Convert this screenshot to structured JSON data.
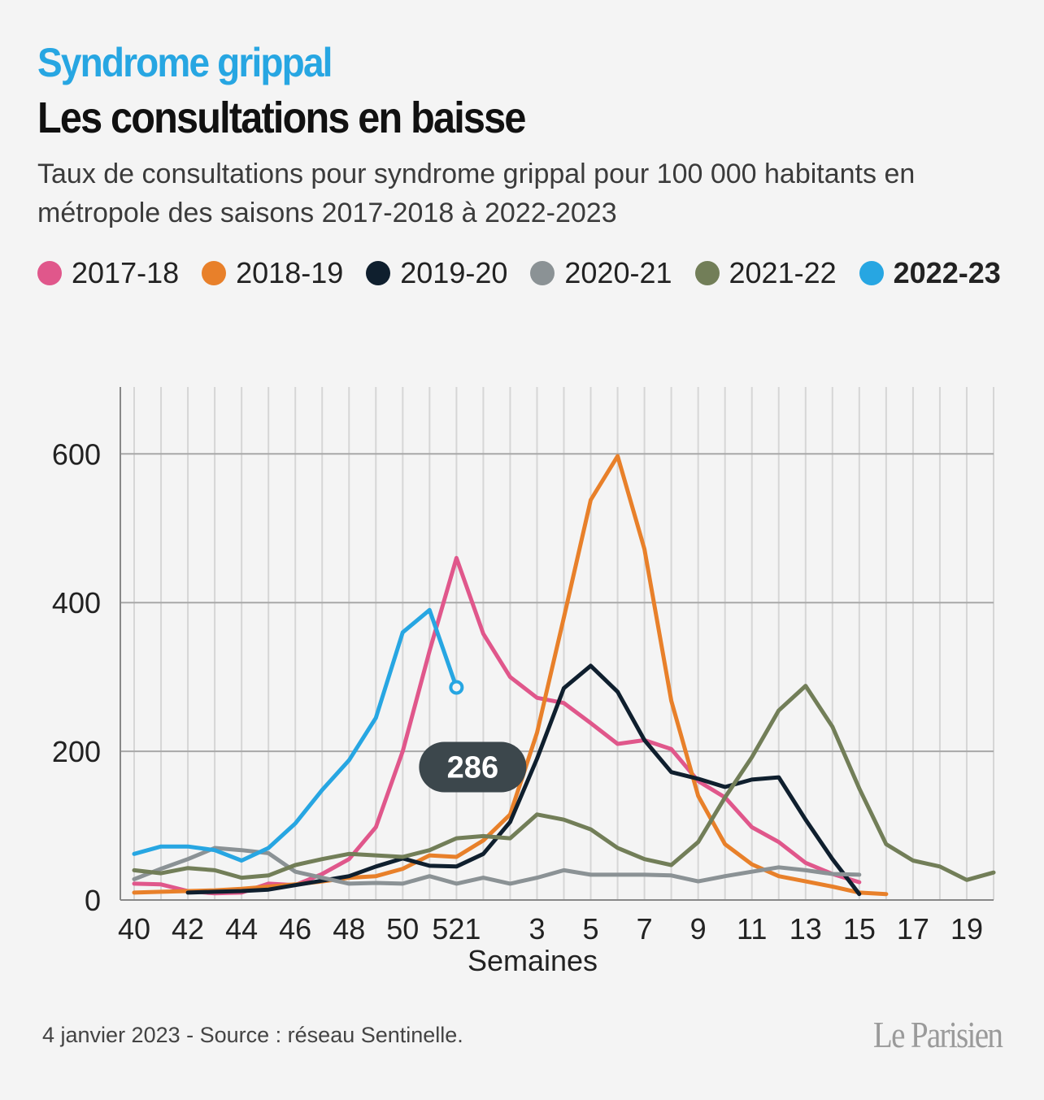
{
  "header": {
    "kicker": "Syndrome grippal",
    "title": "Les consultations en baisse",
    "subtitle": "Taux de consultations pour syndrome grippal pour 100 000 habitants en métropole des saisons 2017-2018 à 2022-2023"
  },
  "legend": [
    {
      "label": "2017-18",
      "color": "#e0578b"
    },
    {
      "label": "2018-19",
      "color": "#e8802a"
    },
    {
      "label": "2019-20",
      "color": "#0f1f2e"
    },
    {
      "label": "2020-21",
      "color": "#8b9295"
    },
    {
      "label": "2021-22",
      "color": "#727e58"
    },
    {
      "label": "2022-23",
      "color": "#27a6e2"
    }
  ],
  "chart_data": {
    "type": "line",
    "xlabel": "Semaines",
    "ylabel": "",
    "ylim": [
      0,
      690
    ],
    "yticks": [
      0,
      200,
      400,
      600
    ],
    "x_positions": [
      "40",
      "41",
      "42",
      "43",
      "44",
      "45",
      "46",
      "47",
      "48",
      "49",
      "50",
      "51",
      "52",
      "1",
      "2",
      "3",
      "4",
      "5",
      "6",
      "7",
      "8",
      "9",
      "10",
      "11",
      "12",
      "13",
      "14",
      "15",
      "16",
      "17",
      "18",
      "19",
      "20"
    ],
    "tick_labels": [
      {
        "at": "40",
        "label": "40"
      },
      {
        "at": "42",
        "label": "42"
      },
      {
        "at": "44",
        "label": "44"
      },
      {
        "at": "46",
        "label": "46"
      },
      {
        "at": "48",
        "label": "48"
      },
      {
        "at": "50",
        "label": "50"
      },
      {
        "at": "52",
        "label": "521"
      },
      {
        "at": "3",
        "label": "3"
      },
      {
        "at": "5",
        "label": "5"
      },
      {
        "at": "7",
        "label": "7"
      },
      {
        "at": "9",
        "label": "9"
      },
      {
        "at": "11",
        "label": "11"
      },
      {
        "at": "13",
        "label": "13"
      },
      {
        "at": "15",
        "label": "15"
      },
      {
        "at": "17",
        "label": "17"
      },
      {
        "at": "19",
        "label": "19"
      }
    ],
    "grid": true,
    "series": [
      {
        "name": "2017-18",
        "color": "#e0578b",
        "values": [
          22,
          21,
          12,
          9,
          10,
          22,
          20,
          35,
          55,
          98,
          200,
          335,
          460,
          358,
          300,
          272,
          265,
          238,
          210,
          215,
          203,
          160,
          138,
          98,
          78,
          50,
          35,
          24,
          null,
          null,
          null,
          null,
          null
        ]
      },
      {
        "name": "2018-19",
        "color": "#e8802a",
        "values": [
          10,
          11,
          12,
          13,
          15,
          18,
          21,
          25,
          30,
          32,
          42,
          60,
          58,
          80,
          115,
          225,
          380,
          538,
          597,
          472,
          268,
          140,
          75,
          48,
          32,
          25,
          18,
          10,
          8,
          null,
          null,
          null,
          null
        ]
      },
      {
        "name": "2019-20",
        "color": "#0f1f2e",
        "values": [
          null,
          null,
          10,
          11,
          12,
          14,
          20,
          26,
          32,
          45,
          56,
          46,
          45,
          62,
          105,
          190,
          285,
          315,
          280,
          215,
          172,
          163,
          152,
          162,
          165,
          108,
          55,
          8,
          null,
          null,
          null,
          null,
          null
        ]
      },
      {
        "name": "2020-21",
        "color": "#8b9295",
        "values": [
          28,
          42,
          55,
          70,
          67,
          63,
          38,
          30,
          22,
          23,
          22,
          32,
          22,
          30,
          22,
          30,
          40,
          34,
          34,
          34,
          33,
          25,
          32,
          38,
          44,
          40,
          35,
          34,
          null,
          null,
          null,
          null,
          null
        ]
      },
      {
        "name": "2021-22",
        "color": "#727e58",
        "values": [
          40,
          36,
          43,
          40,
          30,
          33,
          47,
          55,
          62,
          60,
          58,
          67,
          83,
          86,
          83,
          115,
          108,
          95,
          70,
          55,
          47,
          78,
          138,
          192,
          255,
          288,
          233,
          150,
          75,
          53,
          45,
          27,
          37
        ]
      },
      {
        "name": "2022-23",
        "color": "#27a6e2",
        "values": [
          62,
          72,
          72,
          67,
          53,
          70,
          103,
          148,
          188,
          245,
          360,
          390,
          286,
          null,
          null,
          null,
          null,
          null,
          null,
          null,
          null,
          null,
          null,
          null,
          null,
          null,
          null,
          null,
          null,
          null,
          null,
          null,
          null
        ]
      }
    ],
    "annotation": {
      "series": "2022-23",
      "text": "286"
    }
  },
  "footer": {
    "source": "4 janvier 2023 - Source : réseau Sentinelle.",
    "logo": "Le Parisien"
  }
}
